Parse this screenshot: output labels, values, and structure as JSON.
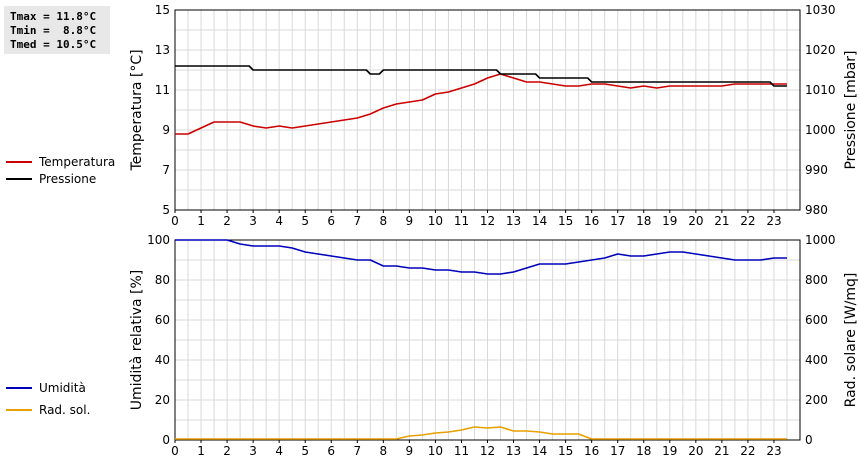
{
  "stats": {
    "tmax": "Tmax = 11.8°C",
    "tmin": "Tmin =  8.8°C",
    "tmed": "Tmed = 10.5°C"
  },
  "legend_top": [
    {
      "label": "Temperatura",
      "color": "#cc0000"
    },
    {
      "label": "Pressione",
      "color": "#000000"
    }
  ],
  "legend_bottom": [
    {
      "label": "Umidità",
      "color": "#0000bb"
    },
    {
      "label": "Rad. sol.",
      "color": "#e8a000"
    }
  ],
  "chart_data": [
    {
      "type": "line",
      "xlabel": "",
      "x_ticks": [
        "0",
        "1",
        "2",
        "3",
        "4",
        "5",
        "6",
        "7",
        "8",
        "9",
        "10",
        "11",
        "12",
        "13",
        "14",
        "15",
        "16",
        "17",
        "18",
        "19",
        "20",
        "21",
        "22",
        "23"
      ],
      "xlim": [
        0,
        24
      ],
      "grid": true,
      "legend_position": "left",
      "y_left": {
        "label": "Temperatura [°C]",
        "ylim": [
          5,
          15
        ],
        "ticks": [
          "5",
          "7",
          "9",
          "11",
          "13",
          "15"
        ]
      },
      "y_right": {
        "label": "Pressione [mbar]",
        "ylim": [
          980,
          1030
        ],
        "ticks": [
          "980",
          "990",
          "1000",
          "1010",
          "1020",
          "1030"
        ]
      },
      "series": [
        {
          "name": "Temperatura",
          "axis": "left",
          "color": "#cc0000",
          "x": [
            0,
            0.5,
            1,
            1.5,
            2,
            2.5,
            3,
            3.5,
            4,
            4.5,
            5,
            5.5,
            6,
            6.5,
            7,
            7.5,
            8,
            8.5,
            9,
            9.5,
            10,
            10.5,
            11,
            11.5,
            12,
            12.5,
            13,
            13.5,
            14,
            14.5,
            15,
            15.5,
            16,
            16.5,
            17,
            17.5,
            18,
            18.5,
            19,
            19.5,
            20,
            20.5,
            21,
            21.5,
            22,
            22.5,
            23,
            23.5
          ],
          "values": [
            8.8,
            8.8,
            9.1,
            9.4,
            9.4,
            9.4,
            9.2,
            9.1,
            9.2,
            9.1,
            9.2,
            9.3,
            9.4,
            9.5,
            9.6,
            9.8,
            10.1,
            10.3,
            10.4,
            10.5,
            10.8,
            10.9,
            11.1,
            11.3,
            11.6,
            11.8,
            11.6,
            11.4,
            11.4,
            11.3,
            11.2,
            11.2,
            11.3,
            11.3,
            11.2,
            11.1,
            11.2,
            11.1,
            11.2,
            11.2,
            11.2,
            11.2,
            11.2,
            11.3,
            11.3,
            11.3,
            11.3,
            11.3
          ]
        },
        {
          "name": "Pressione",
          "axis": "right",
          "color": "#000000",
          "x": [
            0,
            0.5,
            1,
            1.5,
            2,
            2.5,
            3,
            3.5,
            4,
            4.5,
            5,
            5.5,
            6,
            6.5,
            7,
            7.5,
            8,
            8.5,
            9,
            9.5,
            10,
            10.5,
            11,
            11.5,
            12,
            12.5,
            13,
            13.5,
            14,
            14.5,
            15,
            15.5,
            16,
            16.5,
            17,
            17.5,
            18,
            18.5,
            19,
            19.5,
            20,
            20.5,
            21,
            21.5,
            22,
            22.5,
            23,
            23.5
          ],
          "values": [
            1016,
            1016,
            1016,
            1016,
            1016,
            1016,
            1015,
            1015,
            1015,
            1015,
            1015,
            1015,
            1015,
            1015,
            1015,
            1014,
            1015,
            1015,
            1015,
            1015,
            1015,
            1015,
            1015,
            1015,
            1015,
            1014,
            1014,
            1014,
            1013,
            1013,
            1013,
            1013,
            1012,
            1012,
            1012,
            1012,
            1012,
            1012,
            1012,
            1012,
            1012,
            1012,
            1012,
            1012,
            1012,
            1012,
            1011,
            1011
          ]
        }
      ]
    },
    {
      "type": "line",
      "xlabel": "",
      "x_ticks": [
        "0",
        "1",
        "2",
        "3",
        "4",
        "5",
        "6",
        "7",
        "8",
        "9",
        "10",
        "11",
        "12",
        "13",
        "14",
        "15",
        "16",
        "17",
        "18",
        "19",
        "20",
        "21",
        "22",
        "23"
      ],
      "xlim": [
        0,
        24
      ],
      "grid": true,
      "legend_position": "left",
      "y_left": {
        "label": "Umidità relativa [%]",
        "ylim": [
          0,
          100
        ],
        "ticks": [
          "0",
          "20",
          "40",
          "60",
          "80",
          "100"
        ]
      },
      "y_right": {
        "label": "Rad. solare [W/mq]",
        "ylim": [
          0,
          1000
        ],
        "ticks": [
          "0",
          "200",
          "400",
          "600",
          "800",
          "1000"
        ]
      },
      "series": [
        {
          "name": "Umidità",
          "axis": "left",
          "color": "#0000bb",
          "x": [
            0,
            0.5,
            1,
            1.5,
            2,
            2.5,
            3,
            3.5,
            4,
            4.5,
            5,
            5.5,
            6,
            6.5,
            7,
            7.5,
            8,
            8.5,
            9,
            9.5,
            10,
            10.5,
            11,
            11.5,
            12,
            12.5,
            13,
            13.5,
            14,
            14.5,
            15,
            15.5,
            16,
            16.5,
            17,
            17.5,
            18,
            18.5,
            19,
            19.5,
            20,
            20.5,
            21,
            21.5,
            22,
            22.5,
            23,
            23.5
          ],
          "values": [
            100,
            100,
            100,
            100,
            100,
            98,
            97,
            97,
            97,
            96,
            94,
            93,
            92,
            91,
            90,
            90,
            87,
            87,
            86,
            86,
            85,
            85,
            84,
            84,
            83,
            83,
            84,
            86,
            88,
            88,
            88,
            89,
            90,
            91,
            93,
            92,
            92,
            93,
            94,
            94,
            93,
            92,
            91,
            90,
            90,
            90,
            91,
            91
          ]
        },
        {
          "name": "Rad. sol.",
          "axis": "right",
          "color": "#e8a000",
          "x": [
            0,
            0.5,
            1,
            1.5,
            2,
            2.5,
            3,
            3.5,
            4,
            4.5,
            5,
            5.5,
            6,
            6.5,
            7,
            7.5,
            8,
            8.5,
            9,
            9.5,
            10,
            10.5,
            11,
            11.5,
            12,
            12.5,
            13,
            13.5,
            14,
            14.5,
            15,
            15.5,
            16,
            16.5,
            17,
            17.5,
            18,
            18.5,
            19,
            19.5,
            20,
            20.5,
            21,
            21.5,
            22,
            22.5,
            23,
            23.5
          ],
          "values": [
            5,
            5,
            5,
            5,
            5,
            5,
            5,
            5,
            5,
            5,
            5,
            5,
            5,
            5,
            5,
            5,
            5,
            5,
            20,
            25,
            35,
            40,
            50,
            65,
            60,
            65,
            45,
            45,
            40,
            30,
            30,
            30,
            5,
            5,
            5,
            5,
            5,
            5,
            5,
            5,
            5,
            5,
            5,
            5,
            5,
            5,
            5,
            5
          ]
        }
      ]
    }
  ]
}
